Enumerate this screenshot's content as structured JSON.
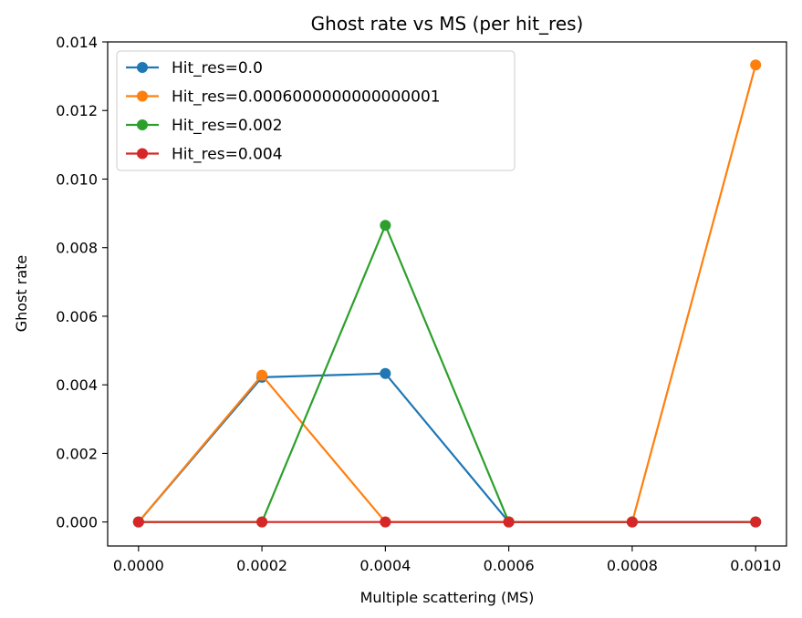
{
  "chart_data": {
    "type": "line",
    "title": "Ghost rate vs MS (per hit_res)",
    "xlabel": "Multiple scattering (MS)",
    "ylabel": "Ghost rate",
    "x": [
      0.0,
      0.0002,
      0.0004,
      0.0006,
      0.0008,
      0.001
    ],
    "xlim": [
      -5e-05,
      0.00105
    ],
    "ylim": [
      -0.0007,
      0.014
    ],
    "xticks": [
      "0.0000",
      "0.0002",
      "0.0004",
      "0.0006",
      "0.0008",
      "0.0010"
    ],
    "yticks": [
      "0.000",
      "0.002",
      "0.004",
      "0.006",
      "0.008",
      "0.010",
      "0.012",
      "0.014"
    ],
    "xtick_values": [
      0.0,
      0.0002,
      0.0004,
      0.0006,
      0.0008,
      0.001
    ],
    "ytick_values": [
      0.0,
      0.002,
      0.004,
      0.006,
      0.008,
      0.01,
      0.012,
      0.014
    ],
    "grid": false,
    "legend_position": "top-left",
    "series": [
      {
        "name": "Hit_res=0.0",
        "color": "#1f77b4",
        "values": [
          0.0,
          0.00422,
          0.00433,
          0.0,
          0.0,
          0.0
        ]
      },
      {
        "name": "Hit_res=0.0006000000000000001",
        "color": "#ff7f0e",
        "values": [
          0.0,
          0.00428,
          0.0,
          0.0,
          0.0,
          0.01333
        ]
      },
      {
        "name": "Hit_res=0.002",
        "color": "#2ca02c",
        "values": [
          0.0,
          0.0,
          0.00865,
          0.0,
          0.0,
          0.0
        ]
      },
      {
        "name": "Hit_res=0.004",
        "color": "#d62728",
        "values": [
          0.0,
          0.0,
          0.0,
          0.0,
          0.0,
          0.0
        ]
      }
    ]
  }
}
